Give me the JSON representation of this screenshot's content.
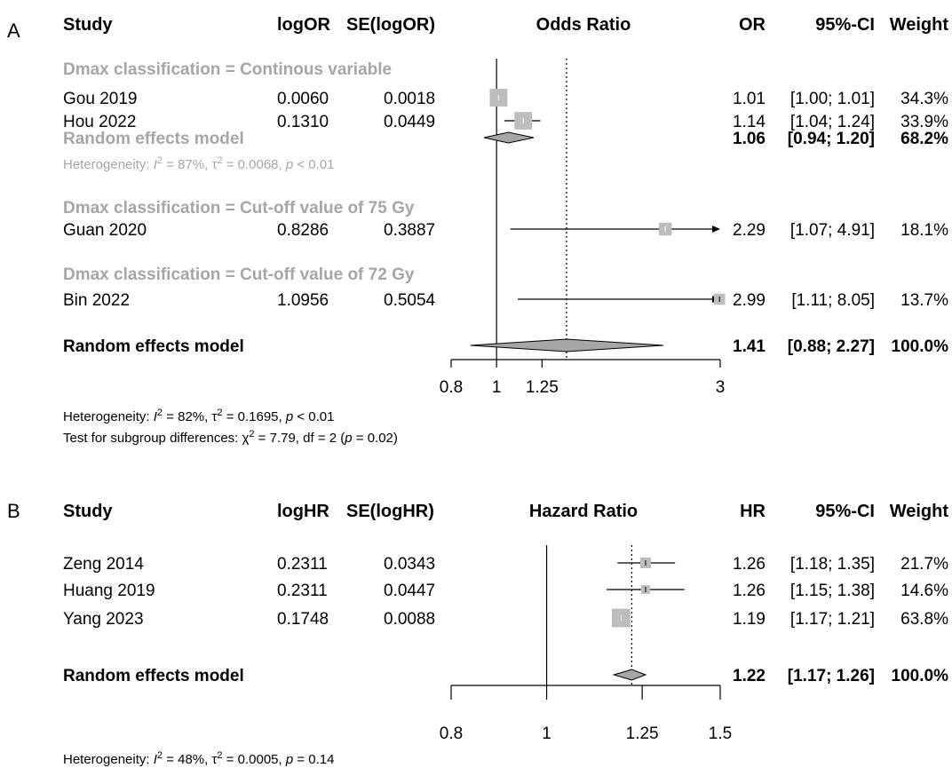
{
  "chart_data": [
    {
      "type": "forest",
      "panel_label": "A",
      "headers": {
        "study": "Study",
        "est": "logOR",
        "se": "SE(logOR)",
        "plot": "Odds Ratio",
        "ratio": "OR",
        "ci": "95%-CI",
        "weight": "Weight"
      },
      "xscale": "log",
      "xlim": [
        0.8,
        3
      ],
      "ticks": [
        0.8,
        1,
        1.25,
        3
      ],
      "tick_labels": [
        "0.8",
        "1",
        "1.25",
        "3"
      ],
      "overall_line": 1.41,
      "subgroups": [
        {
          "label": "Dmax classification = Continous variable",
          "studies": [
            {
              "name": "Gou 2019",
              "est": "0.0060",
              "se": "0.0018",
              "ratio": 1.01,
              "ratio_text": "1.01",
              "ci_low": 1.0,
              "ci_high": 1.01,
              "ci_text": "[1.00; 1.01]",
              "weight": 34.3,
              "weight_text": "34.3%"
            },
            {
              "name": "Hou 2022",
              "est": "0.1310",
              "se": "0.0449",
              "ratio": 1.14,
              "ratio_text": "1.14",
              "ci_low": 1.04,
              "ci_high": 1.24,
              "ci_text": "[1.04; 1.24]",
              "weight": 33.9,
              "weight_text": "33.9%"
            }
          ],
          "summary": {
            "label": "Random effects model",
            "ratio": 1.06,
            "ratio_text": "1.06",
            "ci_low": 0.94,
            "ci_high": 1.2,
            "ci_text": "[0.94; 1.20]",
            "weight_text": "68.2%"
          },
          "heterogeneity": {
            "prefix": "Heterogeneity: ",
            "i2": " = 87%, ",
            "tau": " = 0.0068, ",
            "p": " < 0.01"
          }
        },
        {
          "label": "Dmax classification = Cut-off value of 75 Gy",
          "studies": [
            {
              "name": "Guan 2020",
              "est": "0.8286",
              "se": "0.3887",
              "ratio": 2.29,
              "ratio_text": "2.29",
              "ci_low": 1.07,
              "ci_high": 4.91,
              "ci_text": "[1.07; 4.91]",
              "weight": 18.1,
              "weight_text": "18.1%"
            }
          ]
        },
        {
          "label": "Dmax classification = Cut-off value of 72 Gy",
          "studies": [
            {
              "name": "Bin 2022",
              "est": "1.0956",
              "se": "0.5054",
              "ratio": 2.99,
              "ratio_text": "2.99",
              "ci_low": 1.11,
              "ci_high": 8.05,
              "ci_text": "[1.11; 8.05]",
              "weight": 13.7,
              "weight_text": "13.7%"
            }
          ]
        }
      ],
      "overall": {
        "label": "Random effects model",
        "ratio": 1.41,
        "ratio_text": "1.41",
        "ci_low": 0.88,
        "ci_high": 2.27,
        "ci_text": "[0.88; 2.27]",
        "weight_text": "100.0%"
      },
      "heterogeneity": {
        "prefix": "Heterogeneity: ",
        "i2": " = 82%, ",
        "tau": " = 0.1695, ",
        "p": " < 0.01"
      },
      "subgroup_test": {
        "prefix": "Test for subgroup differences: ",
        "chi": " = 7.79, df = 2 (",
        "p": " = 0.02)"
      }
    },
    {
      "type": "forest",
      "panel_label": "B",
      "headers": {
        "study": "Study",
        "est": "logHR",
        "se": "SE(logHR)",
        "plot": "Hazard Ratio",
        "ratio": "HR",
        "ci": "95%-CI",
        "weight": "Weight"
      },
      "xscale": "log",
      "xlim": [
        0.8,
        1.5
      ],
      "ticks": [
        0.8,
        1,
        1.25,
        1.5
      ],
      "tick_labels": [
        "0.8",
        "1",
        "1.25",
        "1.5"
      ],
      "overall_line": 1.22,
      "studies": [
        {
          "name": "Zeng 2014",
          "est": "0.2311",
          "se": "0.0343",
          "ratio": 1.26,
          "ratio_text": "1.26",
          "ci_low": 1.18,
          "ci_high": 1.35,
          "ci_text": "[1.18; 1.35]",
          "weight": 21.7,
          "weight_text": "21.7%"
        },
        {
          "name": "Huang 2019",
          "est": "0.2311",
          "se": "0.0447",
          "ratio": 1.26,
          "ratio_text": "1.26",
          "ci_low": 1.15,
          "ci_high": 1.38,
          "ci_text": "[1.15; 1.38]",
          "weight": 14.6,
          "weight_text": "14.6%"
        },
        {
          "name": "Yang 2023",
          "est": "0.1748",
          "se": "0.0088",
          "ratio": 1.19,
          "ratio_text": "1.19",
          "ci_low": 1.17,
          "ci_high": 1.21,
          "ci_text": "[1.17; 1.21]",
          "weight": 63.8,
          "weight_text": "63.8%"
        }
      ],
      "overall": {
        "label": "Random effects model",
        "ratio": 1.22,
        "ratio_text": "1.22",
        "ci_low": 1.17,
        "ci_high": 1.26,
        "ci_text": "[1.17; 1.26]",
        "weight_text": "100.0%"
      },
      "heterogeneity": {
        "prefix": "Heterogeneity: ",
        "i2": " = 48%, ",
        "tau": " = 0.0005, ",
        "p": " = 0.14"
      }
    }
  ]
}
